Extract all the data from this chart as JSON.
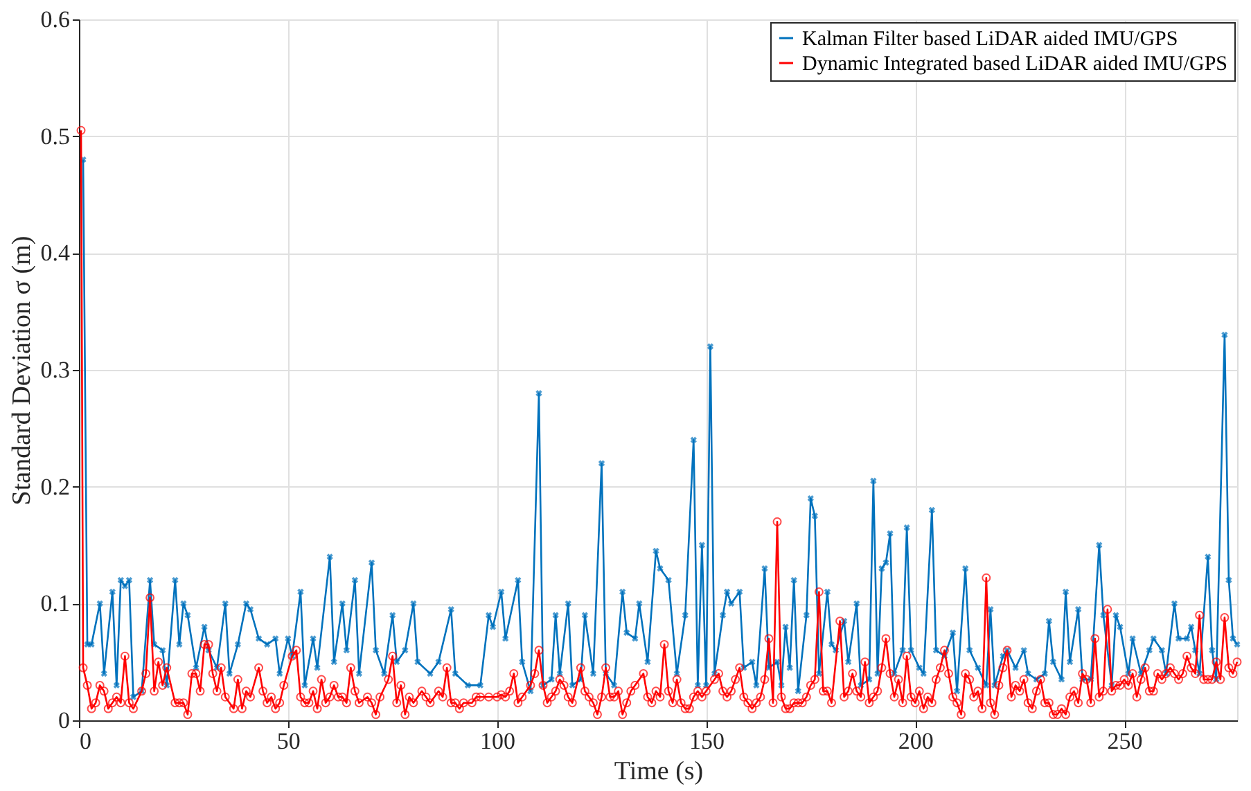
{
  "chart_data": {
    "type": "line",
    "xlabel": "Time (s)",
    "ylabel": "Standard Deviation σ (m)",
    "xlim": [
      0,
      277
    ],
    "ylim": [
      0,
      0.6
    ],
    "xticks": [
      0,
      50,
      100,
      150,
      200,
      250
    ],
    "yticks": [
      0,
      0.1,
      0.2,
      0.3,
      0.4,
      0.5,
      0.6
    ],
    "grid": true,
    "legend": "top right",
    "line_style": "solid",
    "series": [
      {
        "name": "Kalman Filter based LiDAR aided IMU/GPS",
        "color": "#0072bd",
        "marker": "cross",
        "x": [
          1,
          2,
          3,
          5,
          6,
          8,
          9,
          10,
          11,
          12,
          13,
          15,
          17,
          18,
          20,
          21,
          23,
          24,
          25,
          26,
          28,
          30,
          31,
          33,
          35,
          36,
          38,
          40,
          41,
          43,
          45,
          47,
          48,
          50,
          51,
          53,
          54,
          56,
          57,
          60,
          61,
          63,
          64,
          66,
          67,
          70,
          71,
          73,
          75,
          76,
          78,
          80,
          81,
          84,
          86,
          89,
          90,
          93,
          96,
          98,
          99,
          101,
          102,
          105,
          106,
          108,
          110,
          111,
          113,
          114,
          115,
          117,
          118,
          120,
          121,
          123,
          125,
          126,
          128,
          130,
          131,
          133,
          134,
          136,
          138,
          139,
          141,
          143,
          145,
          147,
          148,
          149,
          150,
          151,
          152,
          154,
          155,
          156,
          158,
          159,
          161,
          162,
          164,
          165,
          167,
          168,
          169,
          170,
          171,
          172,
          174,
          175,
          176,
          177,
          179,
          180,
          181,
          183,
          184,
          186,
          187,
          189,
          190,
          191,
          192,
          193,
          194,
          195,
          197,
          198,
          199,
          201,
          202,
          204,
          205,
          207,
          209,
          210,
          212,
          213,
          215,
          217,
          218,
          219,
          221,
          222,
          224,
          226,
          227,
          229,
          231,
          232,
          233,
          235,
          236,
          237,
          239,
          240,
          242,
          244,
          245,
          247,
          248,
          249,
          251,
          252,
          254,
          256,
          257,
          259,
          260,
          262,
          263,
          265,
          266,
          267,
          268,
          270,
          271,
          272,
          274,
          275,
          276,
          277
        ],
        "values": [
          0.48,
          0.065,
          0.065,
          0.1,
          0.04,
          0.11,
          0.03,
          0.12,
          0.115,
          0.12,
          0.02,
          0.025,
          0.12,
          0.065,
          0.06,
          0.03,
          0.12,
          0.065,
          0.1,
          0.09,
          0.045,
          0.08,
          0.06,
          0.045,
          0.1,
          0.04,
          0.065,
          0.1,
          0.095,
          0.07,
          0.065,
          0.07,
          0.04,
          0.07,
          0.055,
          0.11,
          0.03,
          0.07,
          0.045,
          0.14,
          0.05,
          0.1,
          0.06,
          0.12,
          0.04,
          0.135,
          0.06,
          0.04,
          0.09,
          0.05,
          0.06,
          0.1,
          0.05,
          0.04,
          0.05,
          0.095,
          0.04,
          0.03,
          0.03,
          0.09,
          0.08,
          0.11,
          0.07,
          0.12,
          0.05,
          0.025,
          0.28,
          0.03,
          0.035,
          0.09,
          0.04,
          0.1,
          0.03,
          0.035,
          0.09,
          0.04,
          0.22,
          0.04,
          0.03,
          0.11,
          0.075,
          0.07,
          0.1,
          0.05,
          0.145,
          0.13,
          0.12,
          0.04,
          0.09,
          0.24,
          0.03,
          0.15,
          0.03,
          0.32,
          0.04,
          0.09,
          0.11,
          0.1,
          0.11,
          0.045,
          0.05,
          0.03,
          0.13,
          0.045,
          0.05,
          0.03,
          0.08,
          0.045,
          0.12,
          0.025,
          0.09,
          0.19,
          0.175,
          0.04,
          0.11,
          0.065,
          0.06,
          0.085,
          0.05,
          0.1,
          0.03,
          0.035,
          0.205,
          0.04,
          0.13,
          0.135,
          0.16,
          0.04,
          0.06,
          0.165,
          0.06,
          0.045,
          0.04,
          0.18,
          0.06,
          0.055,
          0.075,
          0.025,
          0.13,
          0.06,
          0.045,
          0.03,
          0.095,
          0.03,
          0.055,
          0.06,
          0.045,
          0.06,
          0.04,
          0.035,
          0.04,
          0.085,
          0.05,
          0.035,
          0.11,
          0.05,
          0.095,
          0.035,
          0.035,
          0.15,
          0.09,
          0.03,
          0.09,
          0.08,
          0.04,
          0.07,
          0.04,
          0.06,
          0.07,
          0.06,
          0.04,
          0.1,
          0.07,
          0.07,
          0.08,
          0.06,
          0.04,
          0.14,
          0.06,
          0.035,
          0.33,
          0.12,
          0.07,
          0.065
        ]
      },
      {
        "name": "Dynamic Integrated based LiDAR aided IMU/GPS",
        "color": "#ff0000",
        "marker": "circle",
        "x": [
          0.5,
          1,
          2,
          3,
          4,
          5,
          6,
          7,
          8,
          9,
          10,
          11,
          12,
          13,
          15,
          16,
          17,
          18,
          19,
          20,
          21,
          23,
          24,
          25,
          26,
          27,
          28,
          29,
          30,
          31,
          32,
          33,
          34,
          35,
          37,
          38,
          39,
          40,
          41,
          43,
          44,
          45,
          46,
          47,
          48,
          49,
          51,
          52,
          53,
          54,
          55,
          56,
          57,
          58,
          59,
          60,
          61,
          62,
          63,
          64,
          65,
          66,
          67,
          69,
          70,
          71,
          72,
          74,
          75,
          76,
          77,
          78,
          79,
          80,
          82,
          83,
          84,
          86,
          87,
          88,
          89,
          90,
          91,
          92,
          94,
          95,
          96,
          98,
          100,
          101,
          102,
          103,
          104,
          105,
          106,
          108,
          109,
          110,
          111,
          112,
          113,
          114,
          115,
          116,
          117,
          118,
          120,
          121,
          122,
          123,
          124,
          125,
          126,
          127,
          128,
          129,
          130,
          131,
          132,
          133,
          135,
          136,
          137,
          138,
          139,
          140,
          141,
          142,
          143,
          144,
          145,
          146,
          147,
          148,
          149,
          150,
          152,
          153,
          154,
          155,
          156,
          157,
          158,
          159,
          160,
          161,
          162,
          163,
          164,
          165,
          166,
          167,
          168,
          169,
          170,
          171,
          172,
          173,
          174,
          175,
          176,
          177,
          178,
          179,
          180,
          182,
          183,
          184,
          185,
          186,
          187,
          188,
          189,
          190,
          191,
          192,
          193,
          194,
          195,
          196,
          197,
          198,
          199,
          200,
          201,
          202,
          203,
          204,
          205,
          206,
          207,
          208,
          209,
          210,
          211,
          212,
          213,
          214,
          215,
          216,
          217,
          218,
          219,
          220,
          221,
          222,
          223,
          224,
          225,
          226,
          227,
          228,
          229,
          230,
          231,
          232,
          233,
          234,
          235,
          236,
          237,
          238,
          239,
          240,
          241,
          242,
          243,
          244,
          245,
          246,
          247,
          248,
          249,
          250,
          251,
          252,
          253,
          254,
          255,
          256,
          257,
          258,
          259,
          260,
          261,
          262,
          263,
          264,
          265,
          266,
          267,
          268,
          269,
          270,
          271,
          272,
          273,
          274,
          275,
          276,
          277
        ],
        "values": [
          0.505,
          0.045,
          0.03,
          0.01,
          0.015,
          0.03,
          0.025,
          0.01,
          0.015,
          0.02,
          0.015,
          0.055,
          0.015,
          0.01,
          0.025,
          0.04,
          0.105,
          0.025,
          0.05,
          0.03,
          0.045,
          0.015,
          0.015,
          0.015,
          0.005,
          0.04,
          0.04,
          0.025,
          0.065,
          0.065,
          0.04,
          0.025,
          0.045,
          0.02,
          0.01,
          0.035,
          0.01,
          0.025,
          0.02,
          0.045,
          0.025,
          0.015,
          0.02,
          0.01,
          0.015,
          0.03,
          0.055,
          0.06,
          0.02,
          0.015,
          0.015,
          0.025,
          0.01,
          0.035,
          0.015,
          0.02,
          0.03,
          0.02,
          0.02,
          0.015,
          0.045,
          0.025,
          0.015,
          0.02,
          0.015,
          0.005,
          0.02,
          0.035,
          0.055,
          0.015,
          0.03,
          0.005,
          0.02,
          0.015,
          0.025,
          0.02,
          0.015,
          0.025,
          0.02,
          0.045,
          0.015,
          0.015,
          0.01,
          0.015,
          0.015,
          0.02,
          0.02,
          0.02,
          0.02,
          0.022,
          0.02,
          0.025,
          0.04,
          0.015,
          0.02,
          0.03,
          0.04,
          0.06,
          0.03,
          0.015,
          0.02,
          0.025,
          0.035,
          0.03,
          0.02,
          0.015,
          0.045,
          0.025,
          0.02,
          0.015,
          0.005,
          0.02,
          0.045,
          0.02,
          0.02,
          0.025,
          0.005,
          0.015,
          0.025,
          0.03,
          0.04,
          0.02,
          0.015,
          0.025,
          0.02,
          0.065,
          0.025,
          0.015,
          0.035,
          0.015,
          0.01,
          0.01,
          0.02,
          0.025,
          0.02,
          0.025,
          0.035,
          0.04,
          0.025,
          0.02,
          0.025,
          0.035,
          0.045,
          0.02,
          0.015,
          0.01,
          0.015,
          0.02,
          0.035,
          0.07,
          0.015,
          0.17,
          0.02,
          0.01,
          0.01,
          0.015,
          0.015,
          0.015,
          0.02,
          0.03,
          0.035,
          0.11,
          0.025,
          0.025,
          0.015,
          0.085,
          0.02,
          0.025,
          0.04,
          0.025,
          0.02,
          0.05,
          0.015,
          0.02,
          0.025,
          0.045,
          0.07,
          0.04,
          0.02,
          0.035,
          0.015,
          0.055,
          0.02,
          0.015,
          0.025,
          0.01,
          0.02,
          0.015,
          0.035,
          0.045,
          0.06,
          0.04,
          0.02,
          0.015,
          0.005,
          0.04,
          0.035,
          0.02,
          0.025,
          0.01,
          0.122,
          0.015,
          0.005,
          0.03,
          0.045,
          0.06,
          0.02,
          0.03,
          0.025,
          0.035,
          0.015,
          0.01,
          0.025,
          0.035,
          0.015,
          0.015,
          0.005,
          0.005,
          0.01,
          0.005,
          0.02,
          0.025,
          0.015,
          0.04,
          0.035,
          0.015,
          0.07,
          0.02,
          0.025,
          0.095,
          0.025,
          0.03,
          0.03,
          0.035,
          0.03,
          0.04,
          0.02,
          0.035,
          0.045,
          0.025,
          0.025,
          0.04,
          0.035,
          0.04,
          0.045,
          0.04,
          0.035,
          0.04,
          0.055,
          0.045,
          0.04,
          0.09,
          0.035,
          0.035,
          0.035,
          0.05,
          0.035,
          0.088,
          0.045,
          0.04,
          0.05
        ]
      }
    ]
  }
}
